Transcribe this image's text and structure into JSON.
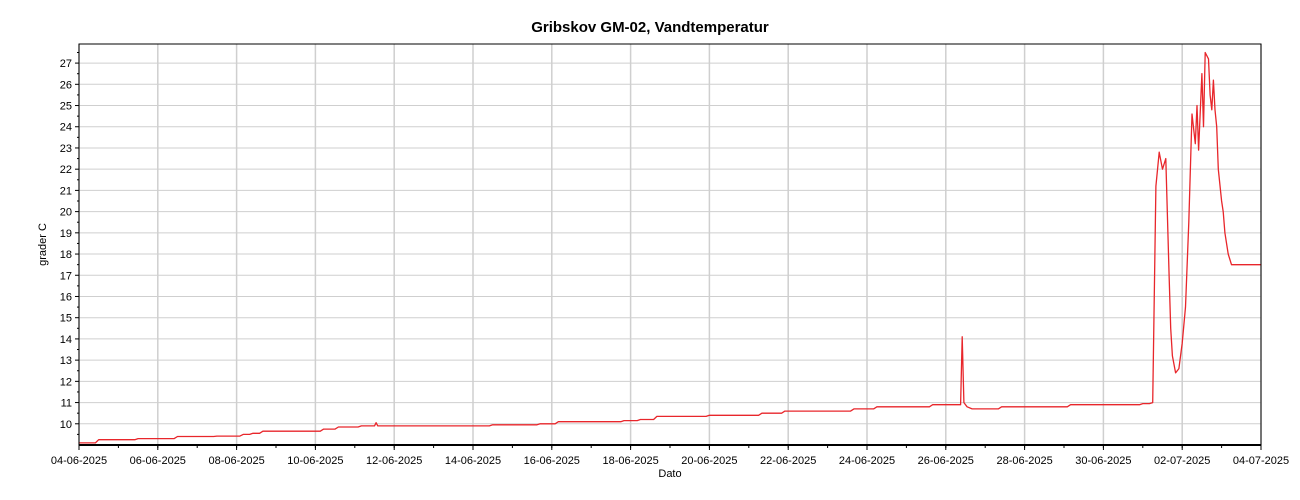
{
  "chart_data": {
    "type": "line",
    "title": "Gribskov GM-02, Vandtemperatur",
    "xlabel": "Dato",
    "ylabel": "grader C",
    "xlim": [
      "2025-06-04",
      "2025-07-04"
    ],
    "ylim": [
      9.0,
      27.9
    ],
    "x_ticks": [
      "04-06-2025",
      "06-06-2025",
      "08-06-2025",
      "10-06-2025",
      "12-06-2025",
      "14-06-2025",
      "16-06-2025",
      "18-06-2025",
      "20-06-2025",
      "22-06-2025",
      "24-06-2025",
      "26-06-2025",
      "28-06-2025",
      "30-06-2025",
      "02-07-2025",
      "04-07-2025"
    ],
    "y_ticks": [
      10,
      11,
      12,
      13,
      14,
      15,
      16,
      17,
      18,
      19,
      20,
      21,
      22,
      23,
      24,
      25,
      26,
      27
    ],
    "grid": true,
    "colors": {
      "series": "#e8262b",
      "grid": "#cfcfcf",
      "axis": "#000000",
      "background": "#ffffff"
    },
    "series": [
      {
        "x": [
          "2025-06-04 00:00",
          "2025-06-04 10:00",
          "2025-06-04 12:00",
          "2025-06-05 10:00",
          "2025-06-05 12:00",
          "2025-06-06 10:00",
          "2025-06-06 12:00",
          "2025-06-07 10:00",
          "2025-06-07 12:00",
          "2025-06-08 02:00",
          "2025-06-08 04:00",
          "2025-06-08 08:00",
          "2025-06-08 10:00",
          "2025-06-08 14:00",
          "2025-06-08 16:00",
          "2025-06-10 03:00",
          "2025-06-10 05:00",
          "2025-06-10 12:00",
          "2025-06-10 14:00",
          "2025-06-10 20:00",
          "2025-06-10 22:00",
          "2025-06-11 02:00",
          "2025-06-11 04:00",
          "2025-06-11 12:00",
          "2025-06-11 13:00",
          "2025-06-11 14:00",
          "2025-06-11 15:00",
          "2025-06-14 10:00",
          "2025-06-14 12:00",
          "2025-06-15 15:00",
          "2025-06-15 17:00",
          "2025-06-16 02:00",
          "2025-06-16 04:00",
          "2025-06-17 18:00",
          "2025-06-17 20:00",
          "2025-06-18 04:00",
          "2025-06-18 06:00",
          "2025-06-18 14:00",
          "2025-06-18 16:00",
          "2025-06-19 22:00",
          "2025-06-20 00:00",
          "2025-06-21 06:00",
          "2025-06-21 08:00",
          "2025-06-21 20:00",
          "2025-06-21 22:00",
          "2025-06-23 14:00",
          "2025-06-23 16:00",
          "2025-06-24 04:00",
          "2025-06-24 06:00",
          "2025-06-25 14:00",
          "2025-06-25 16:00",
          "2025-06-26 09:00",
          "2025-06-26 10:00",
          "2025-06-26 11:00",
          "2025-06-26 13:00",
          "2025-06-26 16:00",
          "2025-06-27 08:00",
          "2025-06-27 10:00",
          "2025-06-29 02:00",
          "2025-06-29 04:00",
          "2025-06-30 22:00",
          "2025-07-01 00:00",
          "2025-07-01 04:00",
          "2025-07-01 06:00",
          "2025-07-01 08:00",
          "2025-07-01 10:00",
          "2025-07-01 12:00",
          "2025-07-01 14:00",
          "2025-07-01 16:00",
          "2025-07-01 17:00",
          "2025-07-01 18:00",
          "2025-07-01 20:00",
          "2025-07-01 22:00",
          "2025-07-02 00:00",
          "2025-07-02 02:00",
          "2025-07-02 04:00",
          "2025-07-02 06:00",
          "2025-07-02 08:00",
          "2025-07-02 09:00",
          "2025-07-02 10:00",
          "2025-07-02 12:00",
          "2025-07-02 13:00",
          "2025-07-02 14:00",
          "2025-07-02 16:00",
          "2025-07-02 17:00",
          "2025-07-02 18:00",
          "2025-07-02 19:00",
          "2025-07-02 20:00",
          "2025-07-02 21:00",
          "2025-07-02 22:00",
          "2025-07-03 00:00",
          "2025-07-03 01:00",
          "2025-07-03 02:00",
          "2025-07-03 04:00",
          "2025-07-03 06:00",
          "2025-07-03 08:00",
          "2025-07-03 10:00",
          "2025-07-03 12:00",
          "2025-07-03 14:00",
          "2025-07-03 16:00",
          "2025-07-03 18:00",
          "2025-07-03 20:00",
          "2025-07-03 22:00",
          "2025-07-04 00:00"
        ],
        "y": [
          9.1,
          9.1,
          9.25,
          9.25,
          9.3,
          9.3,
          9.4,
          9.4,
          9.42,
          9.42,
          9.5,
          9.5,
          9.55,
          9.55,
          9.65,
          9.65,
          9.75,
          9.75,
          9.85,
          9.85,
          9.85,
          9.85,
          9.9,
          9.9,
          10.05,
          9.9,
          9.9,
          9.9,
          9.95,
          9.95,
          10.0,
          10.0,
          10.1,
          10.1,
          10.15,
          10.15,
          10.2,
          10.2,
          10.35,
          10.35,
          10.4,
          10.4,
          10.5,
          10.5,
          10.6,
          10.6,
          10.7,
          10.7,
          10.8,
          10.8,
          10.9,
          10.9,
          14.1,
          11.0,
          10.8,
          10.7,
          10.7,
          10.8,
          10.8,
          10.9,
          10.9,
          10.95,
          10.95,
          11.0,
          21.2,
          22.8,
          22.0,
          22.5,
          17.0,
          14.5,
          13.2,
          12.4,
          12.6,
          13.8,
          15.5,
          19.5,
          24.6,
          23.2,
          25.0,
          22.9,
          26.5,
          24.0,
          27.5,
          27.2,
          25.5,
          24.8,
          26.2,
          24.8,
          24.0,
          22.0,
          20.5,
          20.0,
          19.0,
          18.0,
          17.5,
          17.5,
          17.5,
          17.5,
          17.5,
          17.5,
          17.5,
          17.5,
          17.5,
          17.5
        ]
      }
    ]
  }
}
